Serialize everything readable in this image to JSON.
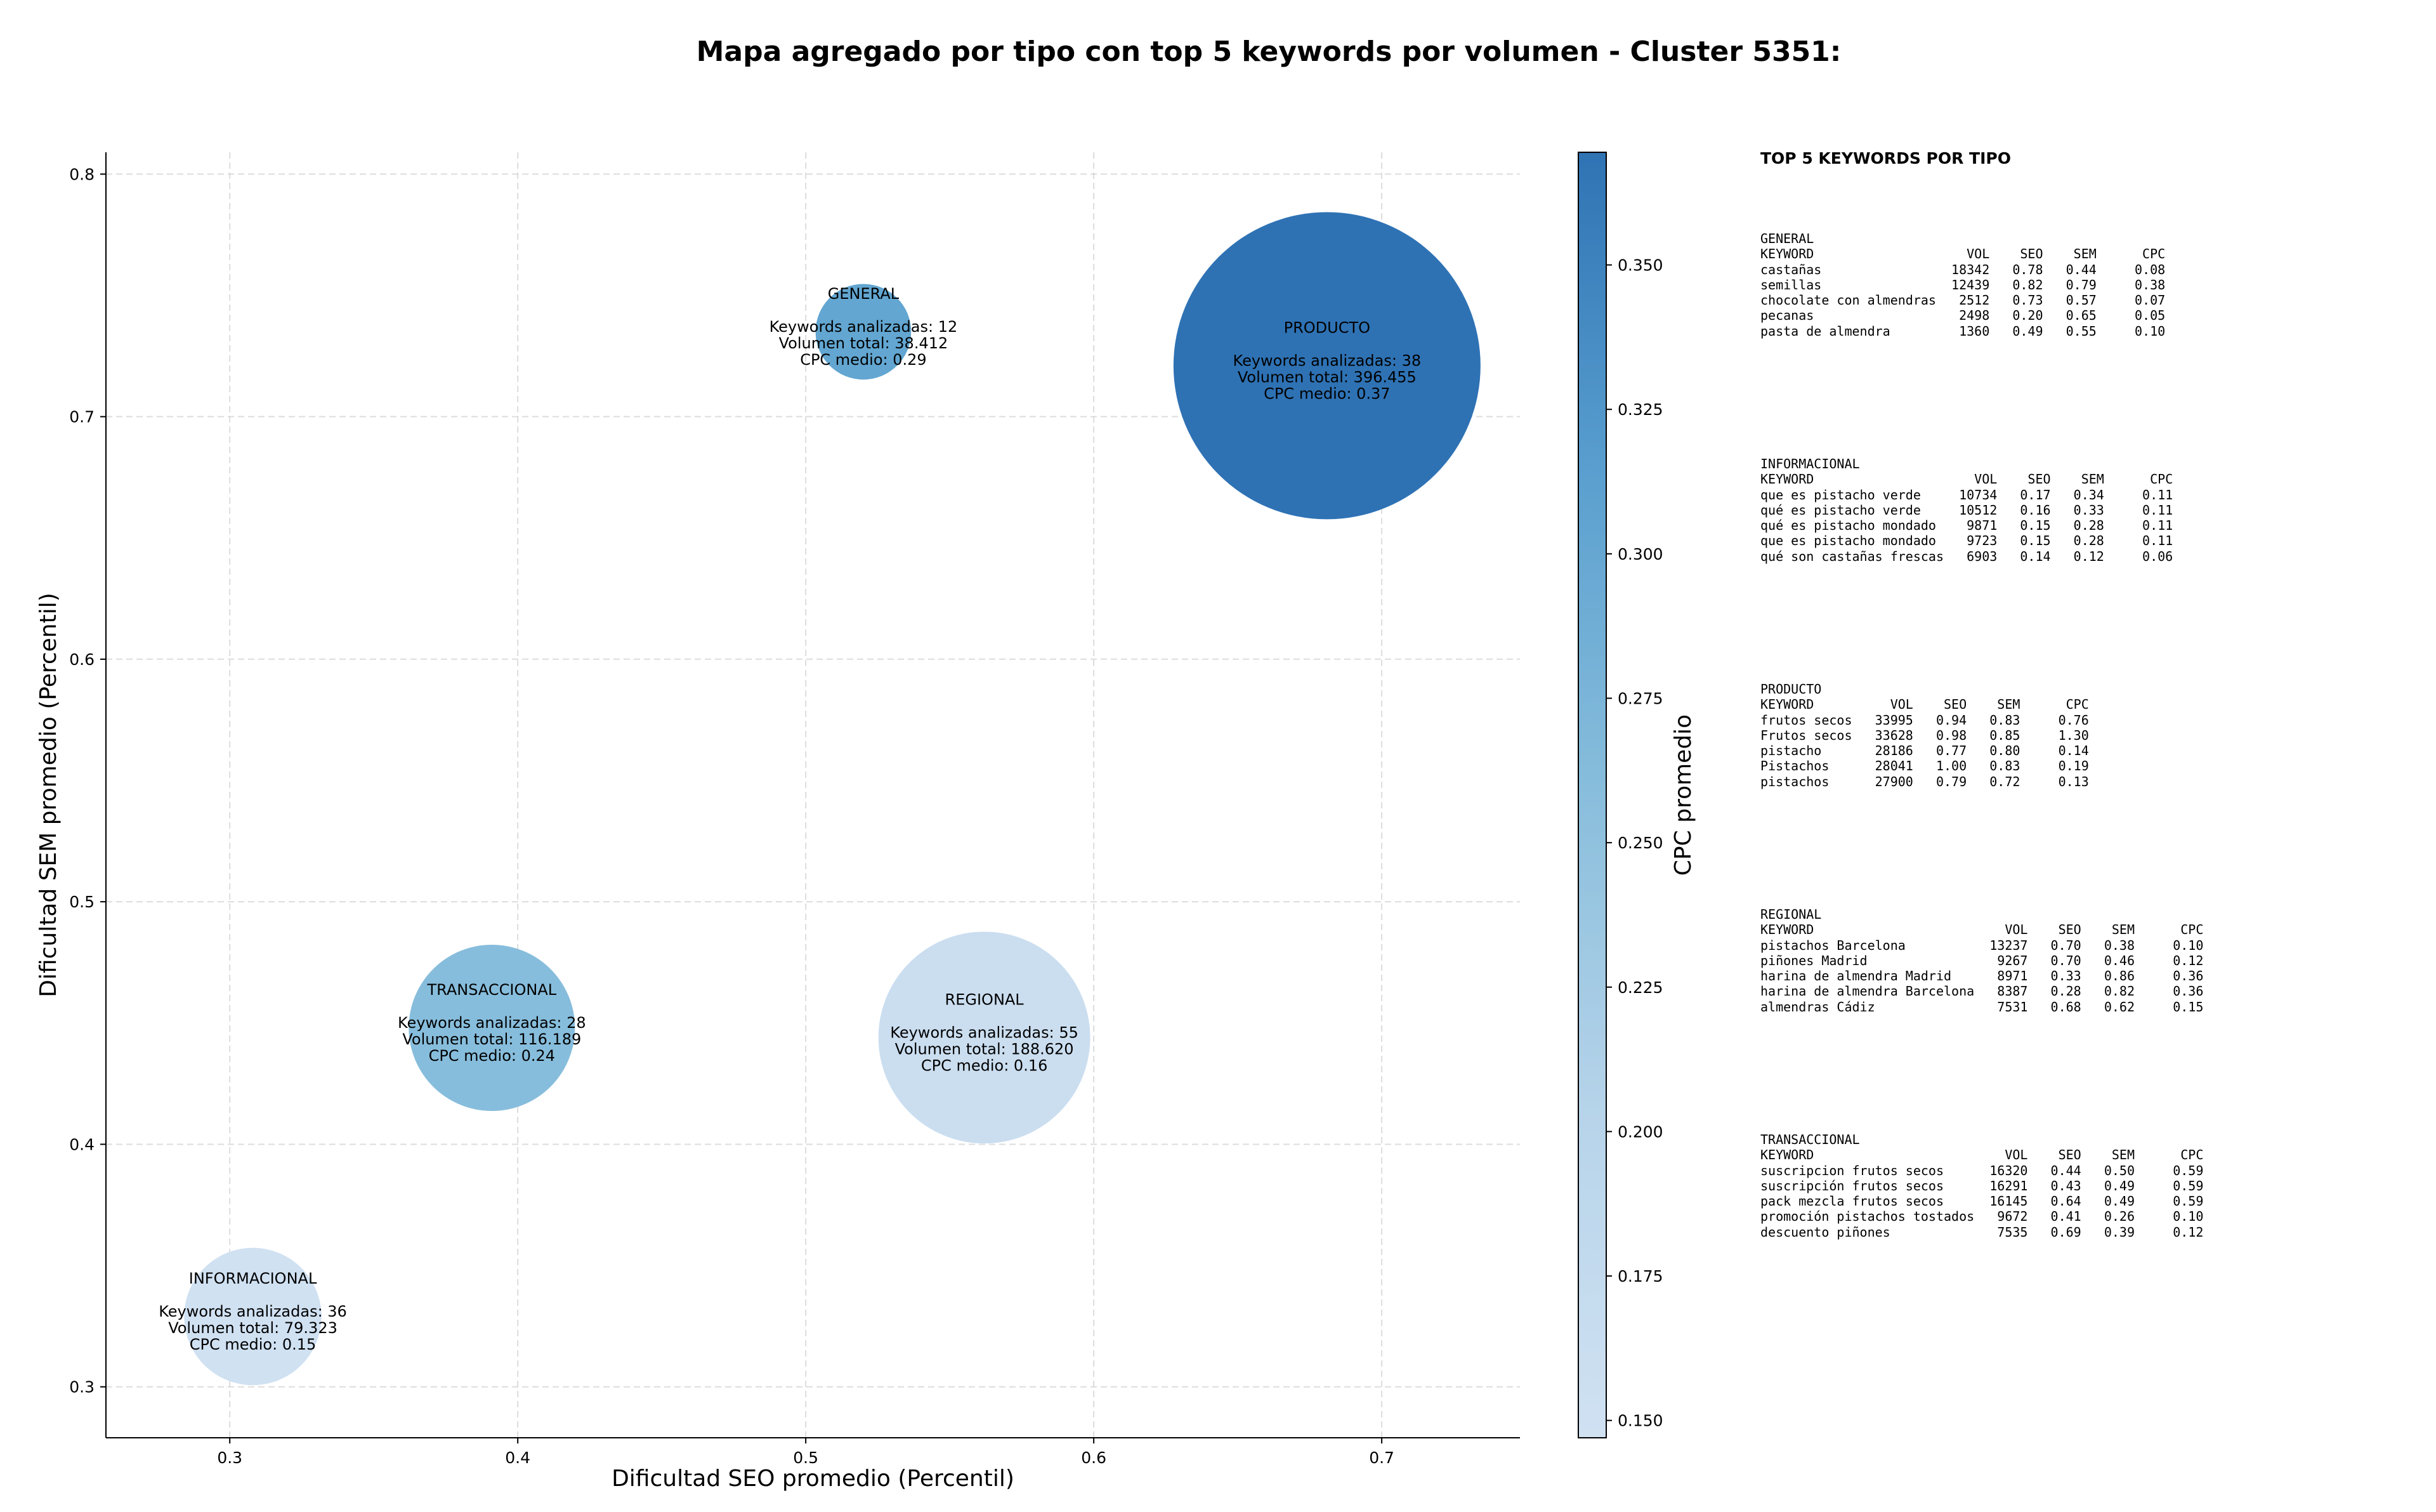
{
  "title": "Mapa agregado por tipo con top 5 keywords por volumen - Cluster 5351:",
  "chart_data": {
    "type": "scatter",
    "title": "Mapa agregado por tipo con top 5 keywords por volumen - Cluster 5351:",
    "xlabel": "Dificultad SEO promedio (Percentil)",
    "ylabel": "Dificultad SEM promedio (Percentil)",
    "colorbar_label": "CPC promedio",
    "xlim": [
      0.257,
      0.748
    ],
    "ylim": [
      0.279,
      0.809
    ],
    "xticks": [
      "0.3",
      "0.4",
      "0.5",
      "0.6",
      "0.7"
    ],
    "yticks": [
      "0.3",
      "0.4",
      "0.5",
      "0.6",
      "0.7",
      "0.8"
    ],
    "colorbar_range": [
      0.147,
      0.3695
    ],
    "colorbar_ticks": [
      "0.150",
      "0.175",
      "0.200",
      "0.225",
      "0.250",
      "0.275",
      "0.300",
      "0.325",
      "0.350"
    ],
    "grid": true,
    "bubble_size_encodes": "Volumen total",
    "points": [
      {
        "label": "GENERAL",
        "x": 0.52,
        "y": 0.735,
        "keywords": 12,
        "volume": 38412,
        "cpc": 0.29,
        "lines": [
          "Keywords analizadas: 12",
          "Volumen total: 38.412",
          "CPC medio: 0.29"
        ],
        "color": "#62a6d1"
      },
      {
        "label": "PRODUCTO",
        "x": 0.681,
        "y": 0.721,
        "keywords": 38,
        "volume": 396455,
        "cpc": 0.37,
        "lines": [
          "Keywords analizadas: 38",
          "Volumen total: 396.455",
          "CPC medio: 0.37"
        ],
        "color": "#2e72b4"
      },
      {
        "label": "TRANSACCIONAL",
        "x": 0.391,
        "y": 0.448,
        "keywords": 28,
        "volume": 116189,
        "cpc": 0.24,
        "lines": [
          "Keywords analizadas: 28",
          "Volumen total: 116.189",
          "CPC medio: 0.24"
        ],
        "color": "#87bddc"
      },
      {
        "label": "REGIONAL",
        "x": 0.562,
        "y": 0.444,
        "keywords": 55,
        "volume": 188620,
        "cpc": 0.16,
        "lines": [
          "Keywords analizadas: 55",
          "Volumen total: 188.620",
          "CPC medio: 0.16"
        ],
        "color": "#cbdef0"
      },
      {
        "label": "INFORMACIONAL",
        "x": 0.308,
        "y": 0.329,
        "keywords": 36,
        "volume": 79323,
        "cpc": 0.15,
        "lines": [
          "Keywords analizadas: 36",
          "Volumen total: 79.323",
          "CPC medio: 0.15"
        ],
        "color": "#d0e1f2"
      }
    ]
  },
  "side_panel": {
    "title": "TOP 5 KEYWORDS POR TIPO",
    "blocks": [
      {
        "name": "GENERAL",
        "text": "GENERAL\nKEYWORD                    VOL    SEO    SEM      CPC\ncastañas                 18342   0.78   0.44     0.08\nsemillas                 12439   0.82   0.79     0.38\nchocolate con almendras   2512   0.73   0.57     0.07\npecanas                   2498   0.20   0.65     0.05\npasta de almendra         1360   0.49   0.55     0.10"
      },
      {
        "name": "INFORMACIONAL",
        "text": "INFORMACIONAL\nKEYWORD                     VOL    SEO    SEM      CPC\nque es pistacho verde     10734   0.17   0.34     0.11\nqué es pistacho verde     10512   0.16   0.33     0.11\nqué es pistacho mondado    9871   0.15   0.28     0.11\nque es pistacho mondado    9723   0.15   0.28     0.11\nqué son castañas frescas   6903   0.14   0.12     0.06"
      },
      {
        "name": "PRODUCTO",
        "text": "PRODUCTO\nKEYWORD          VOL    SEO    SEM      CPC\nfrutos secos   33995   0.94   0.83     0.76\nFrutos secos   33628   0.98   0.85     1.30\npistacho       28186   0.77   0.80     0.14\nPistachos      28041   1.00   0.83     0.19\npistachos      27900   0.79   0.72     0.13"
      },
      {
        "name": "REGIONAL",
        "text": "REGIONAL\nKEYWORD                         VOL    SEO    SEM      CPC\npistachos Barcelona           13237   0.70   0.38     0.10\npiñones Madrid                 9267   0.70   0.46     0.12\nharina de almendra Madrid      8971   0.33   0.86     0.36\nharina de almendra Barcelona   8387   0.28   0.82     0.36\nalmendras Cádiz                7531   0.68   0.62     0.15"
      },
      {
        "name": "TRANSACCIONAL",
        "text": "TRANSACCIONAL\nKEYWORD                         VOL    SEO    SEM      CPC\nsuscripcion frutos secos      16320   0.44   0.50     0.59\nsuscripción frutos secos      16291   0.43   0.49     0.59\npack mezcla frutos secos      16145   0.64   0.49     0.59\npromoción pistachos tostados   9672   0.41   0.26     0.10\ndescuento piñones              7535   0.69   0.39     0.12"
      }
    ]
  }
}
